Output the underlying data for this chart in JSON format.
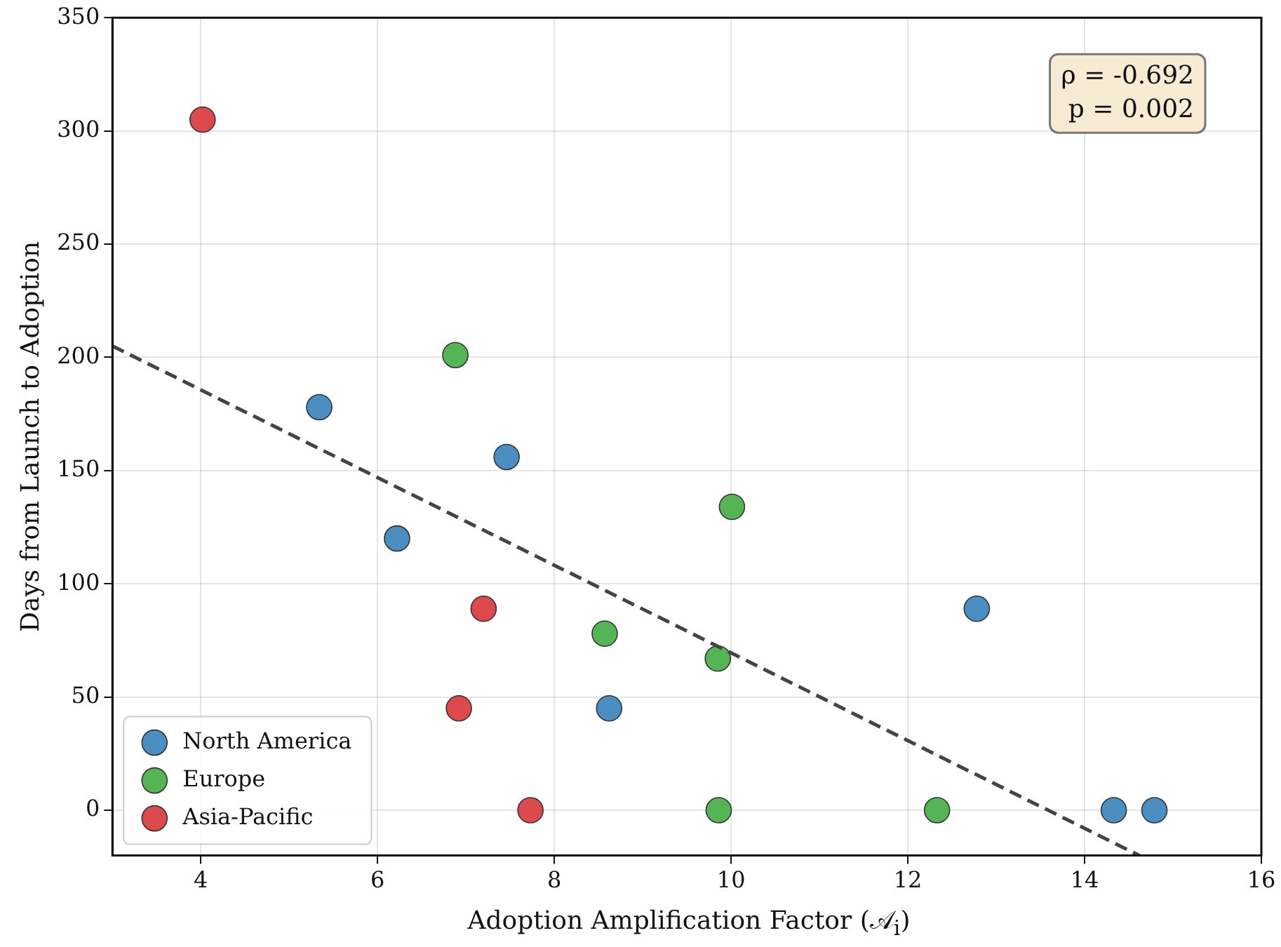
{
  "chart_data": {
    "type": "scatter",
    "xlabel": "Adoption Amplification Factor (𝒜$_{i}$)",
    "ylabel": "Days from Launch to Adoption",
    "xlim": [
      3,
      16
    ],
    "xticks": [
      4,
      6,
      8,
      10,
      12,
      14,
      16
    ],
    "ylim": [
      -20,
      350
    ],
    "yticks": [
      0,
      50,
      100,
      150,
      200,
      250,
      300,
      350
    ],
    "grid": true,
    "legend": "bottom left",
    "marker": "circle",
    "series": [
      {
        "name": "North America",
        "color": "#4a8ec2",
        "x": [
          5.34,
          6.22,
          7.46,
          8.62,
          12.78,
          14.33,
          14.79
        ],
        "values": [
          178,
          120,
          156,
          45,
          89,
          0,
          0
        ]
      },
      {
        "name": "Europe",
        "color": "#55b555",
        "x": [
          6.88,
          10.01,
          8.57,
          9.85,
          9.86,
          12.33
        ],
        "values": [
          201,
          134,
          78,
          67,
          0,
          0
        ]
      },
      {
        "name": "Asia-Pacific",
        "color": "#dc4a4d",
        "x": [
          4.02,
          7.2,
          6.92,
          7.73
        ],
        "values": [
          305,
          89,
          45,
          0
        ]
      },
      {
        "type": "line",
        "color": "#444444",
        "line_style": "dashed",
        "marker": "none",
        "x": [
          3,
          14.62
        ],
        "values": [
          205,
          -20
        ]
      }
    ],
    "annotations": [
      "ρ = -0.692",
      "p = 0.002"
    ]
  }
}
